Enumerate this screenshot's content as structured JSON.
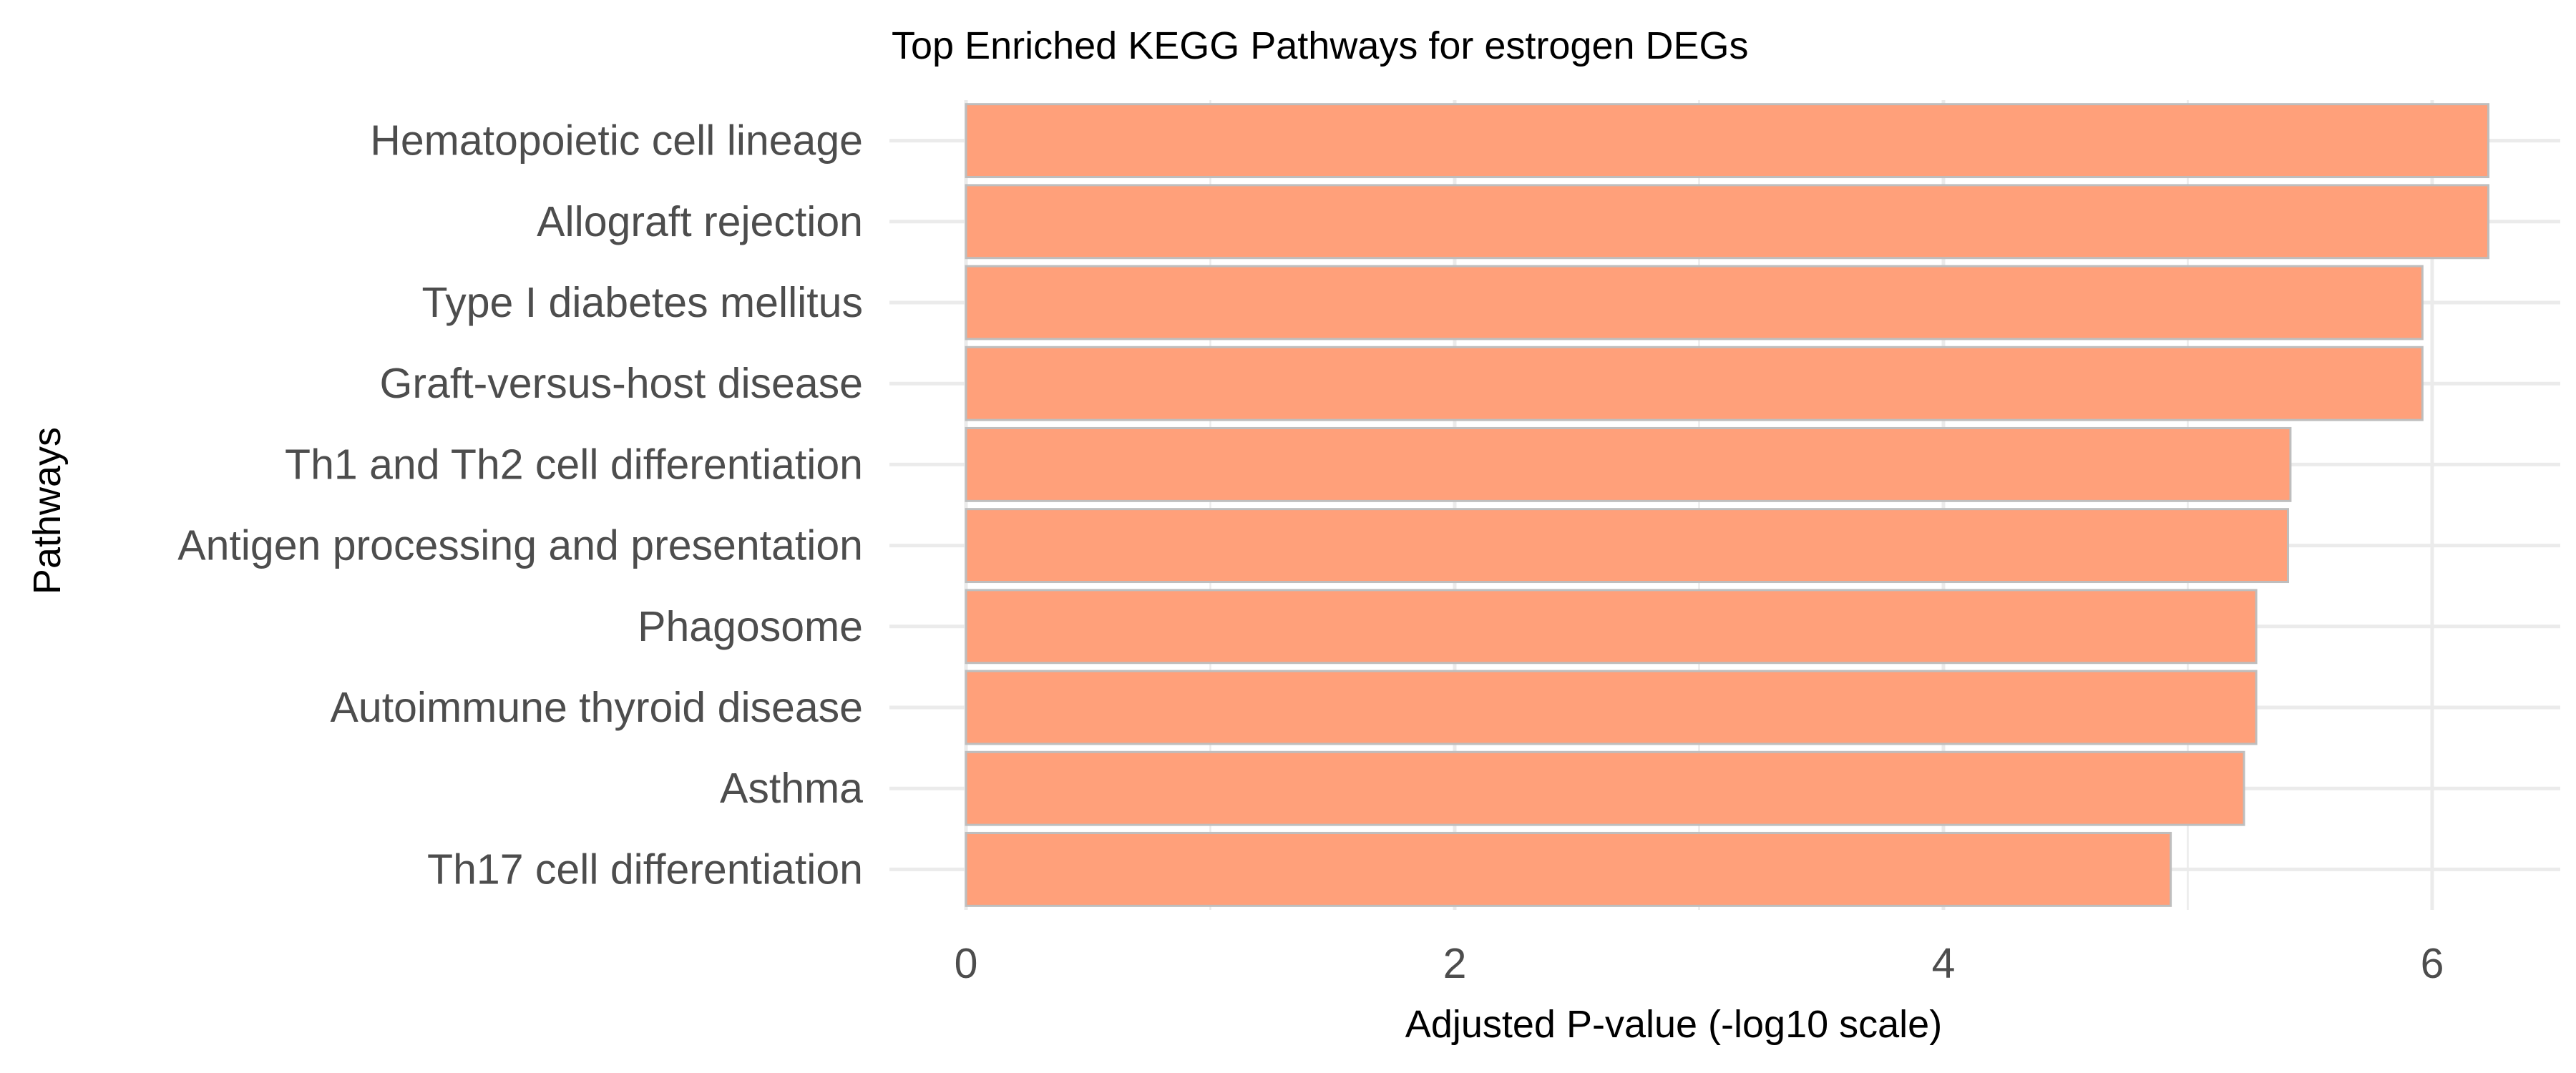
{
  "chart_data": {
    "type": "bar",
    "orientation": "horizontal",
    "title": "Top Enriched KEGG Pathways for estrogen DEGs",
    "xlabel": "Adjusted P-value (-log10 scale)",
    "ylabel": "Pathways",
    "categories": [
      "Hematopoietic cell lineage",
      "Allograft rejection",
      "Type I diabetes mellitus",
      "Graft-versus-host disease",
      "Th1 and Th2 cell differentiation",
      "Antigen processing and presentation",
      "Phagosome",
      "Autoimmune thyroid disease",
      "Asthma",
      "Th17 cell differentiation"
    ],
    "values": [
      6.23,
      6.23,
      5.96,
      5.96,
      5.42,
      5.41,
      5.28,
      5.28,
      5.23,
      4.93
    ],
    "xlim": [
      0,
      6.5
    ],
    "xticks": [
      0,
      2,
      4,
      6
    ],
    "xtick_labels": [
      "0",
      "2",
      "4",
      "6"
    ],
    "grid": true,
    "bar_color": "#FFA07A",
    "bar_border_color": "#BEBEBE"
  }
}
